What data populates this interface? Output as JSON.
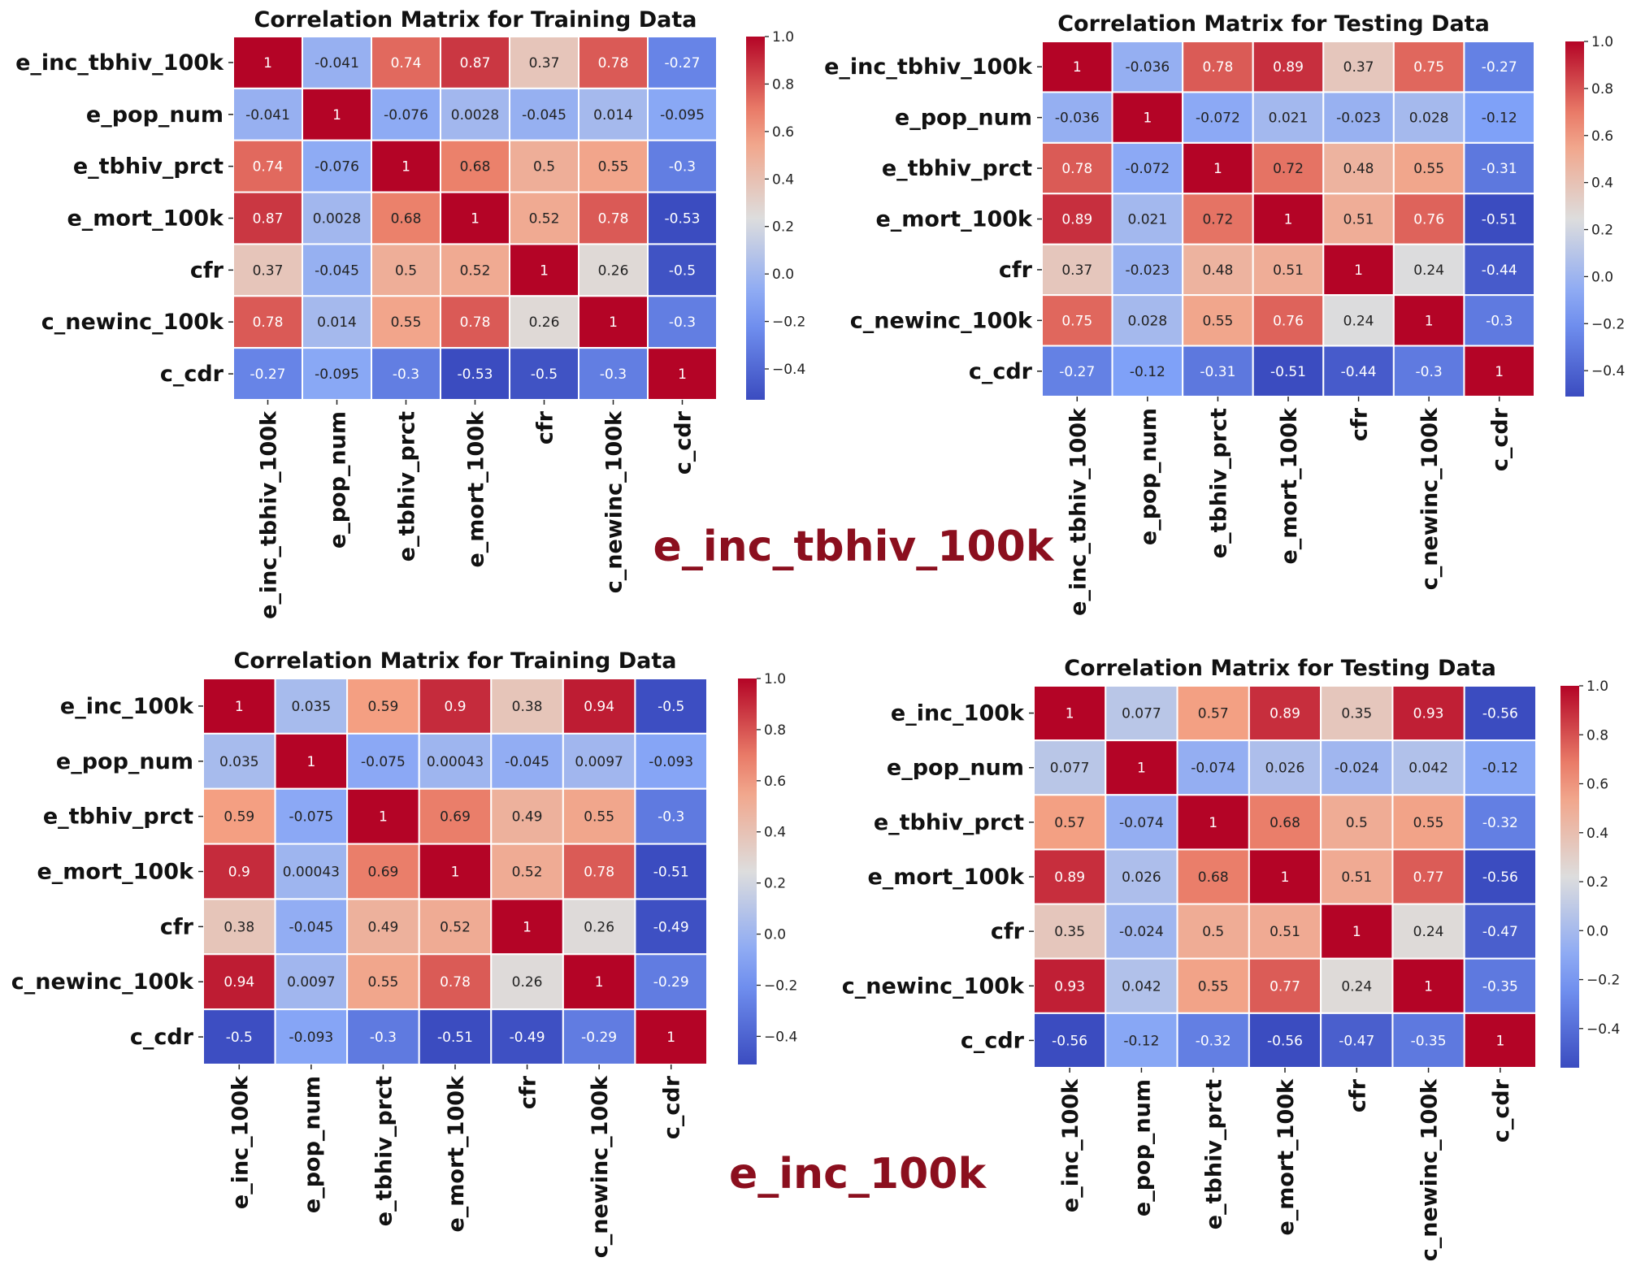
{
  "chart_data": [
    {
      "type": "heatmap",
      "title": "Correlation Matrix for Training Data",
      "labels": [
        "e_inc_tbhiv_100k",
        "e_pop_num",
        "e_tbhiv_prct",
        "e_mort_100k",
        "cfr",
        "c_newinc_100k",
        "c_cdr"
      ],
      "values": [
        [
          1,
          -0.041,
          0.74,
          0.87,
          0.37,
          0.78,
          -0.27
        ],
        [
          -0.041,
          1,
          -0.076,
          0.0028,
          -0.045,
          0.014,
          -0.095
        ],
        [
          0.74,
          -0.076,
          1,
          0.68,
          0.5,
          0.55,
          -0.3
        ],
        [
          0.87,
          0.0028,
          0.68,
          1,
          0.52,
          0.78,
          -0.53
        ],
        [
          0.37,
          -0.045,
          0.5,
          0.52,
          1,
          0.26,
          -0.5
        ],
        [
          0.78,
          0.014,
          0.55,
          0.78,
          0.26,
          1,
          -0.3
        ],
        [
          -0.27,
          -0.095,
          -0.3,
          -0.53,
          -0.5,
          -0.3,
          1
        ]
      ],
      "value_text": [
        [
          "1",
          "-0.041",
          "0.74",
          "0.87",
          "0.37",
          "0.78",
          "-0.27"
        ],
        [
          "-0.041",
          "1",
          "-0.076",
          "0.0028",
          "-0.045",
          "0.014",
          "-0.095"
        ],
        [
          "0.74",
          "-0.076",
          "1",
          "0.68",
          "0.5",
          "0.55",
          "-0.3"
        ],
        [
          "0.87",
          "0.0028",
          "0.68",
          "1",
          "0.52",
          "0.78",
          "-0.53"
        ],
        [
          "0.37",
          "-0.045",
          "0.5",
          "0.52",
          "1",
          "0.26",
          "-0.5"
        ],
        [
          "0.78",
          "0.014",
          "0.55",
          "0.78",
          "0.26",
          "1",
          "-0.3"
        ],
        [
          "-0.27",
          "-0.095",
          "-0.3",
          "-0.53",
          "-0.5",
          "-0.3",
          "1"
        ]
      ],
      "colorbar": {
        "range": [
          -0.53,
          1.0
        ],
        "ticks": [
          "1.0",
          "0.8",
          "0.6",
          "0.4",
          "0.2",
          "0.0",
          "−0.2",
          "−0.4"
        ]
      },
      "group_label": "e_inc_tbhiv_100k"
    },
    {
      "type": "heatmap",
      "title": "Correlation Matrix for Testing Data",
      "labels": [
        "e_inc_tbhiv_100k",
        "e_pop_num",
        "e_tbhiv_prct",
        "e_mort_100k",
        "cfr",
        "c_newinc_100k",
        "c_cdr"
      ],
      "values": [
        [
          1,
          -0.036,
          0.78,
          0.89,
          0.37,
          0.75,
          -0.27
        ],
        [
          -0.036,
          1,
          -0.072,
          0.021,
          -0.023,
          0.028,
          -0.12
        ],
        [
          0.78,
          -0.072,
          1,
          0.72,
          0.48,
          0.55,
          -0.31
        ],
        [
          0.89,
          0.021,
          0.72,
          1,
          0.51,
          0.76,
          -0.51
        ],
        [
          0.37,
          -0.023,
          0.48,
          0.51,
          1,
          0.24,
          -0.44
        ],
        [
          0.75,
          0.028,
          0.55,
          0.76,
          0.24,
          1,
          -0.3
        ],
        [
          -0.27,
          -0.12,
          -0.31,
          -0.51,
          -0.44,
          -0.3,
          1
        ]
      ],
      "value_text": [
        [
          "1",
          "-0.036",
          "0.78",
          "0.89",
          "0.37",
          "0.75",
          "-0.27"
        ],
        [
          "-0.036",
          "1",
          "-0.072",
          "0.021",
          "-0.023",
          "0.028",
          "-0.12"
        ],
        [
          "0.78",
          "-0.072",
          "1",
          "0.72",
          "0.48",
          "0.55",
          "-0.31"
        ],
        [
          "0.89",
          "0.021",
          "0.72",
          "1",
          "0.51",
          "0.76",
          "-0.51"
        ],
        [
          "0.37",
          "-0.023",
          "0.48",
          "0.51",
          "1",
          "0.24",
          "-0.44"
        ],
        [
          "0.75",
          "0.028",
          "0.55",
          "0.76",
          "0.24",
          "1",
          "-0.3"
        ],
        [
          "-0.27",
          "-0.12",
          "-0.31",
          "-0.51",
          "-0.44",
          "-0.3",
          "1"
        ]
      ],
      "colorbar": {
        "range": [
          -0.51,
          1.0
        ],
        "ticks": [
          "1.0",
          "0.8",
          "0.6",
          "0.4",
          "0.2",
          "0.0",
          "−0.2",
          "−0.4"
        ]
      }
    },
    {
      "type": "heatmap",
      "title": "Correlation Matrix for Training Data",
      "labels": [
        "e_inc_100k",
        "e_pop_num",
        "e_tbhiv_prct",
        "e_mort_100k",
        "cfr",
        "c_newinc_100k",
        "c_cdr"
      ],
      "values": [
        [
          1,
          0.035,
          0.59,
          0.9,
          0.38,
          0.94,
          -0.5
        ],
        [
          0.035,
          1,
          -0.075,
          0.00043,
          -0.045,
          0.0097,
          -0.093
        ],
        [
          0.59,
          -0.075,
          1,
          0.69,
          0.49,
          0.55,
          -0.3
        ],
        [
          0.9,
          0.00043,
          0.69,
          1,
          0.52,
          0.78,
          -0.51
        ],
        [
          0.38,
          -0.045,
          0.49,
          0.52,
          1,
          0.26,
          -0.49
        ],
        [
          0.94,
          0.0097,
          0.55,
          0.78,
          0.26,
          1,
          -0.29
        ],
        [
          -0.5,
          -0.093,
          -0.3,
          -0.51,
          -0.49,
          -0.29,
          1
        ]
      ],
      "value_text": [
        [
          "1",
          "0.035",
          "0.59",
          "0.9",
          "0.38",
          "0.94",
          "-0.5"
        ],
        [
          "0.035",
          "1",
          "-0.075",
          "0.00043",
          "-0.045",
          "0.0097",
          "-0.093"
        ],
        [
          "0.59",
          "-0.075",
          "1",
          "0.69",
          "0.49",
          "0.55",
          "-0.3"
        ],
        [
          "0.9",
          "0.00043",
          "0.69",
          "1",
          "0.52",
          "0.78",
          "-0.51"
        ],
        [
          "0.38",
          "-0.045",
          "0.49",
          "0.52",
          "1",
          "0.26",
          "-0.49"
        ],
        [
          "0.94",
          "0.0097",
          "0.55",
          "0.78",
          "0.26",
          "1",
          "-0.29"
        ],
        [
          "-0.5",
          "-0.093",
          "-0.3",
          "-0.51",
          "-0.49",
          "-0.29",
          "1"
        ]
      ],
      "colorbar": {
        "range": [
          -0.51,
          1.0
        ],
        "ticks": [
          "1.0",
          "0.8",
          "0.6",
          "0.4",
          "0.2",
          "0.0",
          "−0.2",
          "−0.4"
        ]
      },
      "group_label": "e_inc_100k"
    },
    {
      "type": "heatmap",
      "title": "Correlation Matrix for Testing Data",
      "labels": [
        "e_inc_100k",
        "e_pop_num",
        "e_tbhiv_prct",
        "e_mort_100k",
        "cfr",
        "c_newinc_100k",
        "c_cdr"
      ],
      "values": [
        [
          1,
          0.077,
          0.57,
          0.89,
          0.35,
          0.93,
          -0.56
        ],
        [
          0.077,
          1,
          -0.074,
          0.026,
          -0.024,
          0.042,
          -0.12
        ],
        [
          0.57,
          -0.074,
          1,
          0.68,
          0.5,
          0.55,
          -0.32
        ],
        [
          0.89,
          0.026,
          0.68,
          1,
          0.51,
          0.77,
          -0.56
        ],
        [
          0.35,
          -0.024,
          0.5,
          0.51,
          1,
          0.24,
          -0.47
        ],
        [
          0.93,
          0.042,
          0.55,
          0.77,
          0.24,
          1,
          -0.35
        ],
        [
          -0.56,
          -0.12,
          -0.32,
          -0.56,
          -0.47,
          -0.35,
          1
        ]
      ],
      "value_text": [
        [
          "1",
          "0.077",
          "0.57",
          "0.89",
          "0.35",
          "0.93",
          "-0.56"
        ],
        [
          "0.077",
          "1",
          "-0.074",
          "0.026",
          "-0.024",
          "0.042",
          "-0.12"
        ],
        [
          "0.57",
          "-0.074",
          "1",
          "0.68",
          "0.5",
          "0.55",
          "-0.32"
        ],
        [
          "0.89",
          "0.026",
          "0.68",
          "1",
          "0.51",
          "0.77",
          "-0.56"
        ],
        [
          "0.35",
          "-0.024",
          "0.5",
          "0.51",
          "1",
          "0.24",
          "-0.47"
        ],
        [
          "0.93",
          "0.042",
          "0.55",
          "0.77",
          "0.24",
          "1",
          "-0.35"
        ],
        [
          "-0.56",
          "-0.12",
          "-0.32",
          "-0.56",
          "-0.47",
          "-0.35",
          "1"
        ]
      ],
      "colorbar": {
        "range": [
          -0.56,
          1.0
        ],
        "ticks": [
          "1.0",
          "0.8",
          "0.6",
          "0.4",
          "0.2",
          "0.0",
          "−0.2",
          "−0.4"
        ]
      }
    }
  ],
  "colors": {
    "low": "#3b4cc0",
    "mid": "#dddddd",
    "high": "#b40426",
    "group_label": "#8b0f1e"
  }
}
